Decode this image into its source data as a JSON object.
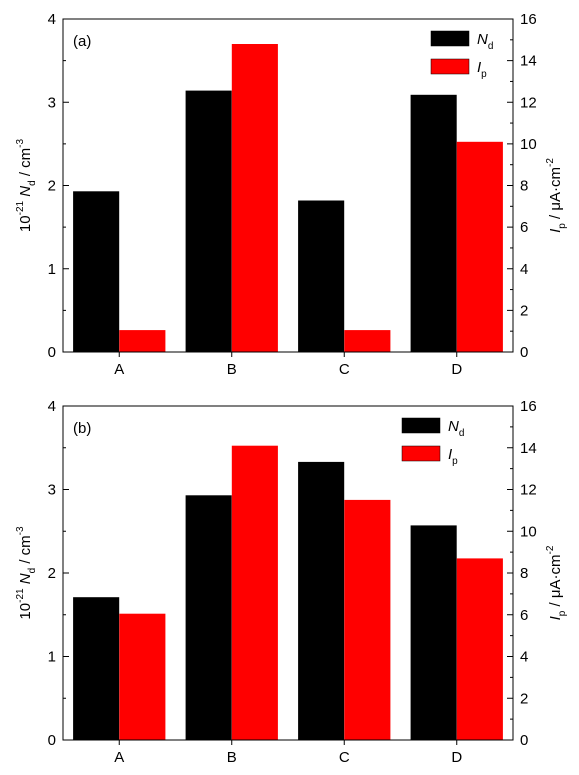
{
  "colors": {
    "nd": "#000000",
    "ip": "#ff0000"
  },
  "chart_data": [
    {
      "type": "bar",
      "panel_label": "(a)",
      "categories": [
        "A",
        "B",
        "C",
        "D"
      ],
      "series": [
        {
          "name": "N_d",
          "axis": "left",
          "values": [
            1.93,
            3.14,
            1.82,
            3.09
          ]
        },
        {
          "name": "I_p",
          "axis": "right",
          "values": [
            1.05,
            14.8,
            1.05,
            10.1
          ]
        }
      ],
      "left_axis": {
        "label_prefix": "10",
        "label_exp": "-21",
        "label_var": "N",
        "label_sub": "d",
        "label_unit": " / cm",
        "label_unit_exp": "-3",
        "ylim": [
          0,
          4
        ],
        "ticks": [
          "0",
          "1",
          "2",
          "3",
          "4"
        ]
      },
      "right_axis": {
        "label_var": "I",
        "label_sub": "p",
        "label_unit": " / μA·cm",
        "label_unit_exp": "-2",
        "ylim": [
          0,
          16
        ],
        "ticks": [
          "0",
          "2",
          "4",
          "6",
          "8",
          "10",
          "12",
          "14",
          "16"
        ]
      },
      "legend": {
        "placement": "top-right",
        "items": [
          {
            "var": "N",
            "sub": "d"
          },
          {
            "var": "I",
            "sub": "p"
          }
        ]
      },
      "grid": false
    },
    {
      "type": "bar",
      "panel_label": "(b)",
      "categories": [
        "A",
        "B",
        "C",
        "D"
      ],
      "series": [
        {
          "name": "N_d",
          "axis": "left",
          "values": [
            1.71,
            2.93,
            3.33,
            2.57
          ]
        },
        {
          "name": "I_p",
          "axis": "right",
          "values": [
            6.05,
            14.1,
            11.5,
            8.7
          ]
        }
      ],
      "left_axis": {
        "label_prefix": "10",
        "label_exp": "-21",
        "label_var": "N",
        "label_sub": "d",
        "label_unit": " / cm",
        "label_unit_exp": "-3",
        "ylim": [
          0,
          4
        ],
        "ticks": [
          "0",
          "1",
          "2",
          "3",
          "4"
        ]
      },
      "right_axis": {
        "label_var": "I",
        "label_sub": "p",
        "label_unit": " / μA·cm",
        "label_unit_exp": "-2",
        "ylim": [
          0,
          16
        ],
        "ticks": [
          "0",
          "2",
          "4",
          "6",
          "8",
          "10",
          "12",
          "14",
          "16"
        ]
      },
      "legend": {
        "placement": "top-right",
        "items": [
          {
            "var": "N",
            "sub": "d"
          },
          {
            "var": "I",
            "sub": "p"
          }
        ]
      },
      "grid": false
    }
  ]
}
